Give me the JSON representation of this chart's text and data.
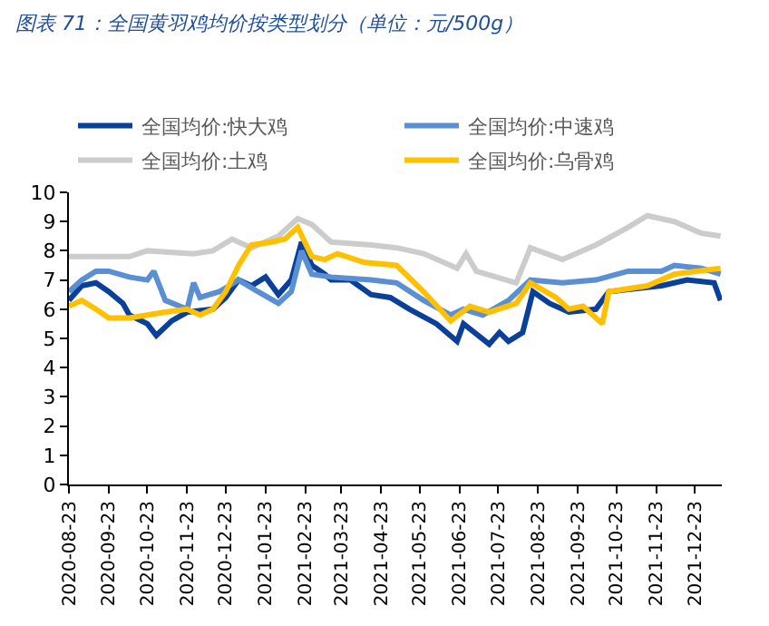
{
  "chart_data": {
    "type": "line",
    "title": "图表 71：全国黄羽鸡均价按类型划分（单位：元/500g）",
    "xlim": [
      "2020-08-23",
      "2022-01-13"
    ],
    "xticks": [
      "2020-08-23",
      "2020-09-23",
      "2020-10-23",
      "2020-11-23",
      "2020-12-23",
      "2021-01-23",
      "2021-02-23",
      "2021-03-23",
      "2021-04-23",
      "2021-05-23",
      "2021-06-23",
      "2021-07-23",
      "2021-08-23",
      "2021-09-23",
      "2021-10-23",
      "2021-11-23",
      "2021-12-23"
    ],
    "ylim": [
      0,
      10
    ],
    "yticks": [
      0,
      1,
      2,
      3,
      4,
      5,
      6,
      7,
      8,
      9,
      10
    ],
    "legend": "top",
    "marker": "none",
    "line_style": "solid",
    "series": [
      {
        "name": "全国均价:快大鸡",
        "color": "#0a3f9a",
        "x": [
          "2020-08-23",
          "2020-09-02",
          "2020-09-13",
          "2020-09-23",
          "2020-10-04",
          "2020-10-09",
          "2020-10-23",
          "2020-10-30",
          "2020-11-11",
          "2020-11-23",
          "2020-12-13",
          "2020-12-23",
          "2021-01-02",
          "2021-01-12",
          "2021-01-23",
          "2021-02-02",
          "2021-02-12",
          "2021-02-20",
          "2021-02-28",
          "2021-03-10",
          "2021-03-15",
          "2021-03-30",
          "2021-04-15",
          "2021-04-30",
          "2021-05-15",
          "2021-06-05",
          "2021-06-21",
          "2021-06-26",
          "2021-07-16",
          "2021-07-24",
          "2021-07-31",
          "2021-08-11",
          "2021-08-19",
          "2021-09-01",
          "2021-09-16",
          "2021-10-07",
          "2021-10-17",
          "2021-11-06",
          "2021-11-27",
          "2021-12-17",
          "2022-01-07",
          "2022-01-12"
        ],
        "values": [
          6.3,
          6.8,
          6.9,
          6.6,
          6.2,
          5.8,
          5.5,
          5.1,
          5.6,
          5.9,
          6.0,
          6.4,
          7.0,
          6.8,
          7.1,
          6.5,
          7.0,
          8.3,
          7.5,
          7.2,
          7.0,
          7.0,
          6.5,
          6.4,
          6.0,
          5.5,
          4.9,
          5.5,
          4.8,
          5.2,
          4.9,
          5.2,
          6.6,
          6.2,
          5.9,
          6.0,
          6.6,
          6.7,
          6.8,
          7.0,
          6.9,
          6.3
        ]
      },
      {
        "name": "全国均价:中速鸡",
        "color": "#5b8fd4",
        "x": [
          "2020-08-23",
          "2020-09-02",
          "2020-09-13",
          "2020-09-23",
          "2020-10-09",
          "2020-10-23",
          "2020-10-28",
          "2020-11-06",
          "2020-11-23",
          "2020-11-28",
          "2020-12-03",
          "2020-12-18",
          "2021-01-02",
          "2021-01-17",
          "2021-02-02",
          "2021-02-12",
          "2021-02-20",
          "2021-02-28",
          "2021-03-15",
          "2021-04-15",
          "2021-05-05",
          "2021-05-26",
          "2021-06-16",
          "2021-06-26",
          "2021-07-11",
          "2021-07-31",
          "2021-08-17",
          "2021-09-11",
          "2021-10-07",
          "2021-11-01",
          "2021-11-27",
          "2021-12-07",
          "2021-12-28",
          "2022-01-12"
        ],
        "values": [
          6.6,
          7.0,
          7.3,
          7.3,
          7.1,
          7.0,
          7.3,
          6.3,
          6.0,
          6.9,
          6.4,
          6.6,
          7.0,
          6.6,
          6.2,
          6.6,
          8.0,
          7.2,
          7.1,
          7.0,
          6.9,
          6.3,
          5.8,
          6.0,
          5.8,
          6.3,
          7.0,
          6.9,
          7.0,
          7.3,
          7.3,
          7.5,
          7.4,
          7.2
        ]
      },
      {
        "name": "全国均价:土鸡",
        "color": "#cccccc",
        "x": [
          "2020-08-23",
          "2020-10-09",
          "2020-10-23",
          "2020-11-28",
          "2020-12-13",
          "2020-12-28",
          "2021-01-12",
          "2021-02-02",
          "2021-02-17",
          "2021-02-28",
          "2021-03-15",
          "2021-04-15",
          "2021-05-05",
          "2021-05-26",
          "2021-06-21",
          "2021-06-28",
          "2021-07-06",
          "2021-08-06",
          "2021-08-17",
          "2021-09-11",
          "2021-10-07",
          "2021-11-01",
          "2021-11-16",
          "2021-12-07",
          "2021-12-28",
          "2022-01-12"
        ],
        "values": [
          7.8,
          7.8,
          8.0,
          7.9,
          8.0,
          8.4,
          8.1,
          8.5,
          9.1,
          8.9,
          8.3,
          8.2,
          8.1,
          7.9,
          7.4,
          7.9,
          7.3,
          6.9,
          8.1,
          7.7,
          8.2,
          8.8,
          9.2,
          9.0,
          8.6,
          8.5
        ]
      },
      {
        "name": "全国均价:乌骨鸡",
        "color": "#ffc000",
        "x": [
          "2020-08-23",
          "2020-09-02",
          "2020-09-13",
          "2020-09-23",
          "2020-10-09",
          "2020-10-23",
          "2020-11-06",
          "2020-11-23",
          "2020-12-03",
          "2020-12-13",
          "2020-12-23",
          "2021-01-02",
          "2021-01-12",
          "2021-01-28",
          "2021-02-07",
          "2021-02-17",
          "2021-02-28",
          "2021-03-10",
          "2021-03-20",
          "2021-04-10",
          "2021-05-05",
          "2021-05-26",
          "2021-06-16",
          "2021-07-01",
          "2021-07-16",
          "2021-08-06",
          "2021-08-17",
          "2021-09-06",
          "2021-09-16",
          "2021-09-27",
          "2021-10-12",
          "2021-10-17",
          "2021-11-16",
          "2021-12-07",
          "2022-01-12"
        ],
        "values": [
          6.1,
          6.3,
          6.0,
          5.7,
          5.7,
          5.8,
          5.9,
          6.0,
          5.8,
          6.0,
          6.6,
          7.5,
          8.2,
          8.3,
          8.4,
          8.8,
          7.8,
          7.7,
          7.9,
          7.6,
          7.5,
          6.6,
          5.6,
          6.1,
          5.9,
          6.2,
          6.9,
          6.4,
          6.0,
          6.1,
          5.5,
          6.6,
          6.8,
          7.2,
          7.4
        ]
      }
    ]
  }
}
